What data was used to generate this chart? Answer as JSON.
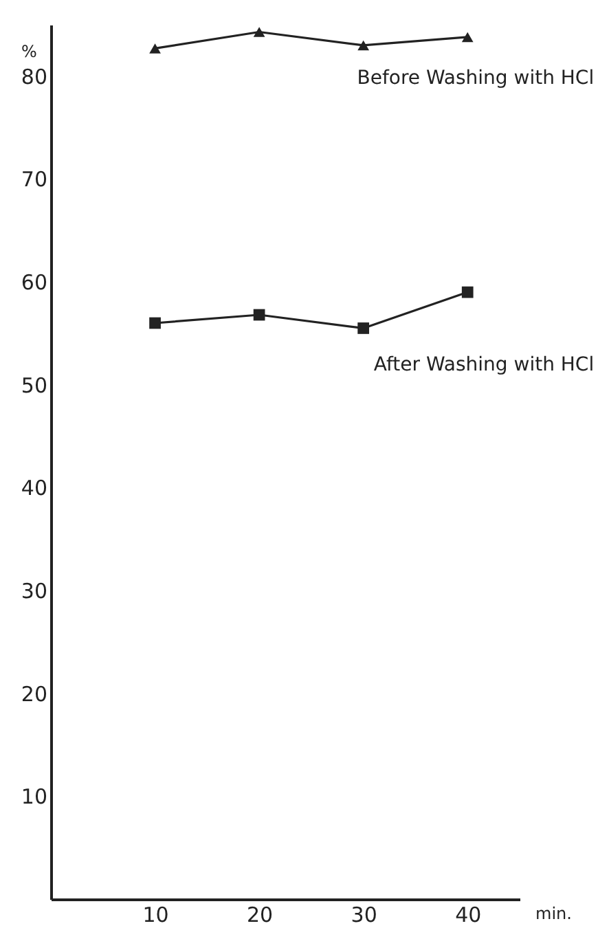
{
  "chart_data": {
    "type": "line",
    "xlabel": "min.",
    "ylabel": "%",
    "x": [
      10,
      20,
      30,
      40
    ],
    "series": [
      {
        "name": "Before Washing with HCl",
        "color": "#222222",
        "marker": "triangle",
        "values": [
          82.7,
          84.3,
          83.0,
          83.8
        ]
      },
      {
        "name": "After Washing with HCl",
        "color": "#222222",
        "marker": "square",
        "values": [
          56.0,
          56.8,
          55.5,
          59.0
        ]
      }
    ],
    "xlim": [
      0,
      45
    ],
    "ylim": [
      0,
      85
    ],
    "xticks": [
      10,
      20,
      30,
      40
    ],
    "yticks": [
      10,
      20,
      30,
      40,
      50,
      60,
      70,
      80
    ],
    "grid": false
  }
}
